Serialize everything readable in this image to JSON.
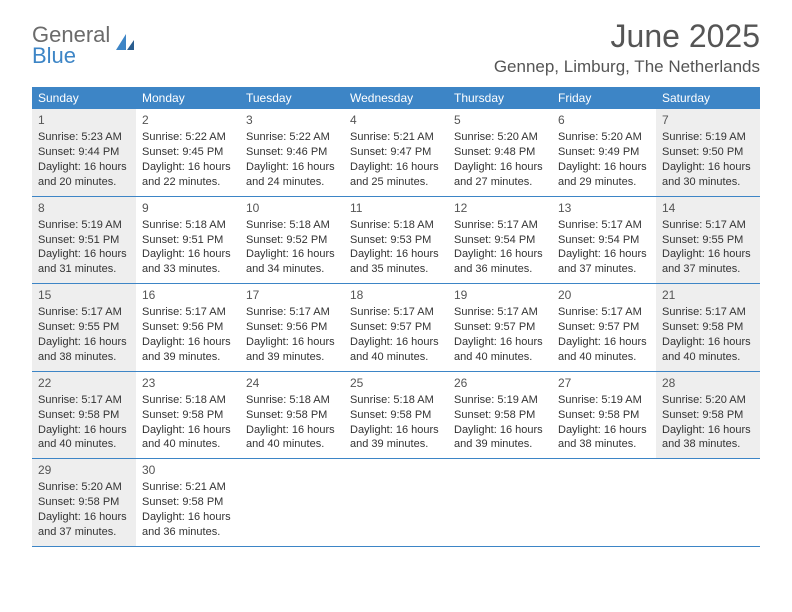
{
  "logo": {
    "general": "General",
    "blue": "Blue"
  },
  "title": "June 2025",
  "location": "Gennep, Limburg, The Netherlands",
  "colors": {
    "header_bg": "#3d85c6",
    "header_text": "#ffffff",
    "shaded_bg": "#eeeeee",
    "text": "#333333",
    "rule": "#3d85c6"
  },
  "days_of_week": [
    "Sunday",
    "Monday",
    "Tuesday",
    "Wednesday",
    "Thursday",
    "Friday",
    "Saturday"
  ],
  "weeks": [
    [
      {
        "n": "1",
        "shaded": true,
        "sunrise": "Sunrise: 5:23 AM",
        "sunset": "Sunset: 9:44 PM",
        "daylight": "Daylight: 16 hours and 20 minutes."
      },
      {
        "n": "2",
        "shaded": false,
        "sunrise": "Sunrise: 5:22 AM",
        "sunset": "Sunset: 9:45 PM",
        "daylight": "Daylight: 16 hours and 22 minutes."
      },
      {
        "n": "3",
        "shaded": false,
        "sunrise": "Sunrise: 5:22 AM",
        "sunset": "Sunset: 9:46 PM",
        "daylight": "Daylight: 16 hours and 24 minutes."
      },
      {
        "n": "4",
        "shaded": false,
        "sunrise": "Sunrise: 5:21 AM",
        "sunset": "Sunset: 9:47 PM",
        "daylight": "Daylight: 16 hours and 25 minutes."
      },
      {
        "n": "5",
        "shaded": false,
        "sunrise": "Sunrise: 5:20 AM",
        "sunset": "Sunset: 9:48 PM",
        "daylight": "Daylight: 16 hours and 27 minutes."
      },
      {
        "n": "6",
        "shaded": false,
        "sunrise": "Sunrise: 5:20 AM",
        "sunset": "Sunset: 9:49 PM",
        "daylight": "Daylight: 16 hours and 29 minutes."
      },
      {
        "n": "7",
        "shaded": true,
        "sunrise": "Sunrise: 5:19 AM",
        "sunset": "Sunset: 9:50 PM",
        "daylight": "Daylight: 16 hours and 30 minutes."
      }
    ],
    [
      {
        "n": "8",
        "shaded": true,
        "sunrise": "Sunrise: 5:19 AM",
        "sunset": "Sunset: 9:51 PM",
        "daylight": "Daylight: 16 hours and 31 minutes."
      },
      {
        "n": "9",
        "shaded": false,
        "sunrise": "Sunrise: 5:18 AM",
        "sunset": "Sunset: 9:51 PM",
        "daylight": "Daylight: 16 hours and 33 minutes."
      },
      {
        "n": "10",
        "shaded": false,
        "sunrise": "Sunrise: 5:18 AM",
        "sunset": "Sunset: 9:52 PM",
        "daylight": "Daylight: 16 hours and 34 minutes."
      },
      {
        "n": "11",
        "shaded": false,
        "sunrise": "Sunrise: 5:18 AM",
        "sunset": "Sunset: 9:53 PM",
        "daylight": "Daylight: 16 hours and 35 minutes."
      },
      {
        "n": "12",
        "shaded": false,
        "sunrise": "Sunrise: 5:17 AM",
        "sunset": "Sunset: 9:54 PM",
        "daylight": "Daylight: 16 hours and 36 minutes."
      },
      {
        "n": "13",
        "shaded": false,
        "sunrise": "Sunrise: 5:17 AM",
        "sunset": "Sunset: 9:54 PM",
        "daylight": "Daylight: 16 hours and 37 minutes."
      },
      {
        "n": "14",
        "shaded": true,
        "sunrise": "Sunrise: 5:17 AM",
        "sunset": "Sunset: 9:55 PM",
        "daylight": "Daylight: 16 hours and 37 minutes."
      }
    ],
    [
      {
        "n": "15",
        "shaded": true,
        "sunrise": "Sunrise: 5:17 AM",
        "sunset": "Sunset: 9:55 PM",
        "daylight": "Daylight: 16 hours and 38 minutes."
      },
      {
        "n": "16",
        "shaded": false,
        "sunrise": "Sunrise: 5:17 AM",
        "sunset": "Sunset: 9:56 PM",
        "daylight": "Daylight: 16 hours and 39 minutes."
      },
      {
        "n": "17",
        "shaded": false,
        "sunrise": "Sunrise: 5:17 AM",
        "sunset": "Sunset: 9:56 PM",
        "daylight": "Daylight: 16 hours and 39 minutes."
      },
      {
        "n": "18",
        "shaded": false,
        "sunrise": "Sunrise: 5:17 AM",
        "sunset": "Sunset: 9:57 PM",
        "daylight": "Daylight: 16 hours and 40 minutes."
      },
      {
        "n": "19",
        "shaded": false,
        "sunrise": "Sunrise: 5:17 AM",
        "sunset": "Sunset: 9:57 PM",
        "daylight": "Daylight: 16 hours and 40 minutes."
      },
      {
        "n": "20",
        "shaded": false,
        "sunrise": "Sunrise: 5:17 AM",
        "sunset": "Sunset: 9:57 PM",
        "daylight": "Daylight: 16 hours and 40 minutes."
      },
      {
        "n": "21",
        "shaded": true,
        "sunrise": "Sunrise: 5:17 AM",
        "sunset": "Sunset: 9:58 PM",
        "daylight": "Daylight: 16 hours and 40 minutes."
      }
    ],
    [
      {
        "n": "22",
        "shaded": true,
        "sunrise": "Sunrise: 5:17 AM",
        "sunset": "Sunset: 9:58 PM",
        "daylight": "Daylight: 16 hours and 40 minutes."
      },
      {
        "n": "23",
        "shaded": false,
        "sunrise": "Sunrise: 5:18 AM",
        "sunset": "Sunset: 9:58 PM",
        "daylight": "Daylight: 16 hours and 40 minutes."
      },
      {
        "n": "24",
        "shaded": false,
        "sunrise": "Sunrise: 5:18 AM",
        "sunset": "Sunset: 9:58 PM",
        "daylight": "Daylight: 16 hours and 40 minutes."
      },
      {
        "n": "25",
        "shaded": false,
        "sunrise": "Sunrise: 5:18 AM",
        "sunset": "Sunset: 9:58 PM",
        "daylight": "Daylight: 16 hours and 39 minutes."
      },
      {
        "n": "26",
        "shaded": false,
        "sunrise": "Sunrise: 5:19 AM",
        "sunset": "Sunset: 9:58 PM",
        "daylight": "Daylight: 16 hours and 39 minutes."
      },
      {
        "n": "27",
        "shaded": false,
        "sunrise": "Sunrise: 5:19 AM",
        "sunset": "Sunset: 9:58 PM",
        "daylight": "Daylight: 16 hours and 38 minutes."
      },
      {
        "n": "28",
        "shaded": true,
        "sunrise": "Sunrise: 5:20 AM",
        "sunset": "Sunset: 9:58 PM",
        "daylight": "Daylight: 16 hours and 38 minutes."
      }
    ],
    [
      {
        "n": "29",
        "shaded": true,
        "sunrise": "Sunrise: 5:20 AM",
        "sunset": "Sunset: 9:58 PM",
        "daylight": "Daylight: 16 hours and 37 minutes."
      },
      {
        "n": "30",
        "shaded": false,
        "sunrise": "Sunrise: 5:21 AM",
        "sunset": "Sunset: 9:58 PM",
        "daylight": "Daylight: 16 hours and 36 minutes."
      },
      null,
      null,
      null,
      null,
      null
    ]
  ]
}
